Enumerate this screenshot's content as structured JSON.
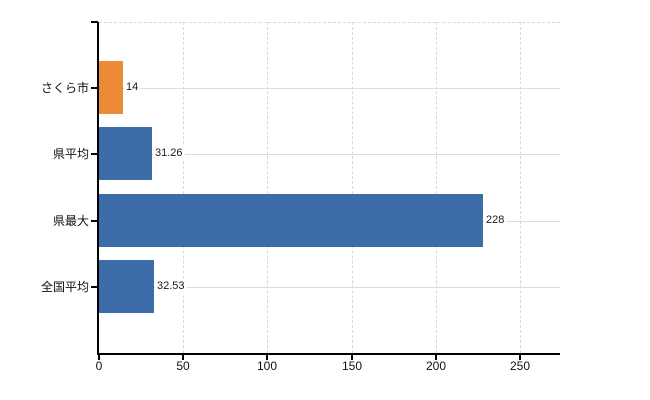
{
  "chart_data": {
    "type": "bar",
    "orientation": "horizontal",
    "title": "",
    "xlabel": "",
    "ylabel": "",
    "categories": [
      "さくら市",
      "県平均",
      "県最大",
      "全国平均"
    ],
    "values": [
      14,
      31.26,
      228,
      32.53
    ],
    "value_labels": [
      "14",
      "31.26",
      "228",
      "32.53"
    ],
    "bar_colors": [
      "#EC8B35",
      "#3C6DA9",
      "#3C6DA9",
      "#3C6DA9"
    ],
    "highlight_color": "#EC8B35",
    "base_color": "#3C6DA9",
    "xlim": [
      0,
      273.6
    ],
    "x_ticks": [
      0,
      50,
      100,
      150,
      200,
      250
    ],
    "grid": {
      "vertical_style": "dashed",
      "horizontal_style": "solid",
      "color": "#d9d9d9"
    },
    "legend": "none",
    "axis_color": "#000000",
    "text_color": "#1a1a1a",
    "background": "#ffffff"
  }
}
